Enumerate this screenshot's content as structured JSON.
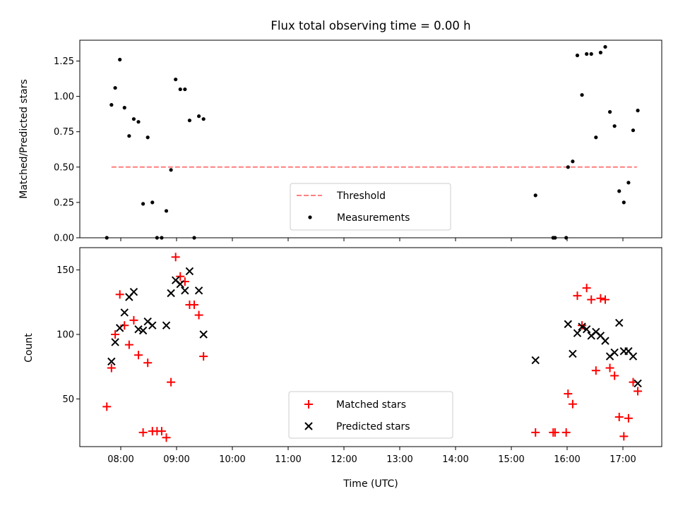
{
  "chart_data": [
    {
      "type": "scatter",
      "title": "Flux total observing time = 0.00 h",
      "xlabel": "",
      "ylabel": "Matched/Predicted stars",
      "xlim": [
        "07:30",
        "17:55"
      ],
      "ylim": [
        0,
        1.42
      ],
      "yticks": [
        "0.00",
        "0.25",
        "0.50",
        "0.75",
        "1.00",
        "1.25"
      ],
      "xticks": [
        "08:00",
        "09:00",
        "10:00",
        "11:00",
        "12:00",
        "13:00",
        "14:00",
        "15:00",
        "16:00",
        "17:00"
      ],
      "show_xtick_labels": false,
      "grid": false,
      "legend": {
        "placement": "lower center",
        "entries": [
          "Threshold",
          "Measurements"
        ]
      },
      "threshold": {
        "name": "Threshold",
        "y": 0.5,
        "x_start": "07:50",
        "x_end": "17:15",
        "color": "#ff7f7f",
        "style": "dashed"
      },
      "series": [
        {
          "name": "Measurements",
          "marker": "dot",
          "color": "#000000",
          "points": [
            [
              "07:45",
              0.0
            ],
            [
              "07:50",
              0.94
            ],
            [
              "07:54",
              1.06
            ],
            [
              "07:59",
              1.26
            ],
            [
              "08:04",
              0.92
            ],
            [
              "08:09",
              0.72
            ],
            [
              "08:14",
              0.84
            ],
            [
              "08:19",
              0.82
            ],
            [
              "08:24",
              0.24
            ],
            [
              "08:29",
              0.71
            ],
            [
              "08:34",
              0.25
            ],
            [
              "08:39",
              0.0
            ],
            [
              "08:44",
              0.0
            ],
            [
              "08:49",
              0.19
            ],
            [
              "08:54",
              0.48
            ],
            [
              "08:59",
              1.12
            ],
            [
              "09:04",
              1.05
            ],
            [
              "09:09",
              1.05
            ],
            [
              "09:14",
              0.83
            ],
            [
              "09:19",
              0.0
            ],
            [
              "09:24",
              0.86
            ],
            [
              "09:29",
              0.84
            ],
            [
              "15:26",
              0.3
            ],
            [
              "15:45",
              0.0
            ],
            [
              "15:47",
              0.0
            ],
            [
              "15:59",
              0.0
            ],
            [
              "16:01",
              0.5
            ],
            [
              "16:06",
              0.54
            ],
            [
              "16:11",
              1.29
            ],
            [
              "16:16",
              1.01
            ],
            [
              "16:21",
              1.3
            ],
            [
              "16:26",
              1.3
            ],
            [
              "16:31",
              0.71
            ],
            [
              "16:36",
              1.31
            ],
            [
              "16:41",
              1.35
            ],
            [
              "16:46",
              0.89
            ],
            [
              "16:51",
              0.79
            ],
            [
              "16:56",
              0.33
            ],
            [
              "17:01",
              0.25
            ],
            [
              "17:06",
              0.39
            ],
            [
              "17:11",
              0.76
            ],
            [
              "17:16",
              0.9
            ]
          ]
        }
      ]
    },
    {
      "type": "scatter",
      "title": "",
      "xlabel": "Time (UTC)",
      "ylabel": "Count",
      "xlim": [
        "07:30",
        "17:55"
      ],
      "ylim": [
        15,
        165
      ],
      "yticks": [
        "50",
        "100",
        "150"
      ],
      "xticks": [
        "08:00",
        "09:00",
        "10:00",
        "11:00",
        "12:00",
        "13:00",
        "14:00",
        "15:00",
        "16:00",
        "17:00"
      ],
      "show_xtick_labels": true,
      "grid": false,
      "legend": {
        "placement": "lower center",
        "entries": [
          "Matched stars",
          "Predicted stars"
        ]
      },
      "series": [
        {
          "name": "Matched stars",
          "marker": "plus",
          "color": "#ff0000",
          "points": [
            [
              "07:45",
              44
            ],
            [
              "07:50",
              74
            ],
            [
              "07:54",
              100
            ],
            [
              "07:59",
              131
            ],
            [
              "08:04",
              107
            ],
            [
              "08:09",
              92
            ],
            [
              "08:14",
              111
            ],
            [
              "08:19",
              84
            ],
            [
              "08:24",
              24
            ],
            [
              "08:29",
              78
            ],
            [
              "08:34",
              25
            ],
            [
              "08:39",
              25
            ],
            [
              "08:44",
              25
            ],
            [
              "08:49",
              20
            ],
            [
              "08:54",
              63
            ],
            [
              "08:59",
              160
            ],
            [
              "09:04",
              145
            ],
            [
              "09:09",
              141
            ],
            [
              "09:14",
              123
            ],
            [
              "09:19",
              123
            ],
            [
              "09:24",
              115
            ],
            [
              "09:29",
              83
            ],
            [
              "15:26",
              24
            ],
            [
              "15:45",
              24
            ],
            [
              "15:47",
              24
            ],
            [
              "15:59",
              24
            ],
            [
              "16:01",
              54
            ],
            [
              "16:06",
              46
            ],
            [
              "16:11",
              130
            ],
            [
              "16:16",
              107
            ],
            [
              "16:21",
              136
            ],
            [
              "16:26",
              127
            ],
            [
              "16:31",
              72
            ],
            [
              "16:36",
              128
            ],
            [
              "16:41",
              127
            ],
            [
              "16:46",
              74
            ],
            [
              "16:51",
              68
            ],
            [
              "16:56",
              36
            ],
            [
              "17:01",
              21
            ],
            [
              "17:06",
              35
            ],
            [
              "17:11",
              63
            ],
            [
              "17:16",
              56
            ]
          ]
        },
        {
          "name": "Predicted stars",
          "marker": "x",
          "color": "#000000",
          "points": [
            [
              "07:50",
              79
            ],
            [
              "07:54",
              94
            ],
            [
              "07:59",
              105
            ],
            [
              "08:04",
              117
            ],
            [
              "08:09",
              129
            ],
            [
              "08:14",
              133
            ],
            [
              "08:19",
              104
            ],
            [
              "08:24",
              103
            ],
            [
              "08:29",
              110
            ],
            [
              "08:34",
              107
            ],
            [
              "08:49",
              107
            ],
            [
              "08:54",
              132
            ],
            [
              "08:59",
              142
            ],
            [
              "09:04",
              139
            ],
            [
              "09:09",
              134
            ],
            [
              "09:14",
              149
            ],
            [
              "09:24",
              134
            ],
            [
              "09:29",
              100
            ],
            [
              "15:26",
              80
            ],
            [
              "16:01",
              108
            ],
            [
              "16:06",
              85
            ],
            [
              "16:11",
              101
            ],
            [
              "16:16",
              106
            ],
            [
              "16:21",
              104
            ],
            [
              "16:26",
              99
            ],
            [
              "16:31",
              102
            ],
            [
              "16:36",
              99
            ],
            [
              "16:41",
              95
            ],
            [
              "16:46",
              83
            ],
            [
              "16:51",
              86
            ],
            [
              "16:56",
              109
            ],
            [
              "17:01",
              87
            ],
            [
              "17:06",
              87
            ],
            [
              "17:11",
              83
            ],
            [
              "17:16",
              62
            ]
          ]
        }
      ]
    }
  ]
}
